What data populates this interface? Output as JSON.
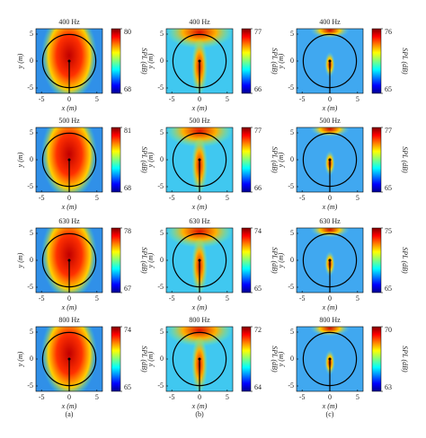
{
  "chart_data": [
    {
      "type": "heatmap",
      "title": "400 Hz",
      "xlabel": "x (m)",
      "ylabel": "y (m)",
      "xlim": [
        -6,
        6
      ],
      "ylim": [
        -6,
        6
      ],
      "xticks": [
        -5,
        0,
        5
      ],
      "yticks": [
        -5,
        0,
        5
      ],
      "colorbar": {
        "label": "SPL (dB)",
        "lim": [
          68,
          80
        ],
        "ticks": [
          68,
          80
        ]
      }
    },
    {
      "type": "heatmap",
      "title": "400 Hz",
      "xlabel": "x (m)",
      "ylabel": "y (m)",
      "xlim": [
        -6,
        6
      ],
      "ylim": [
        -6,
        6
      ],
      "xticks": [
        -5,
        0,
        5
      ],
      "yticks": [
        -5,
        0,
        5
      ],
      "colorbar": {
        "label": "SPL (dB)",
        "lim": [
          66,
          77
        ],
        "ticks": [
          66,
          77
        ]
      }
    },
    {
      "type": "heatmap",
      "title": "400 Hz",
      "xlabel": "x (m)",
      "ylabel": "y (m)",
      "xlim": [
        -6,
        6
      ],
      "ylim": [
        -6,
        6
      ],
      "xticks": [
        -5,
        0,
        5
      ],
      "yticks": [
        -5,
        0,
        5
      ],
      "colorbar": {
        "label": "SPL (dB)",
        "lim": [
          65,
          76
        ],
        "ticks": [
          65,
          76
        ]
      }
    },
    {
      "type": "heatmap",
      "title": "500 Hz",
      "xlabel": "x (m)",
      "ylabel": "y (m)",
      "xlim": [
        -6,
        6
      ],
      "ylim": [
        -6,
        6
      ],
      "xticks": [
        -5,
        0,
        5
      ],
      "yticks": [
        -5,
        0,
        5
      ],
      "colorbar": {
        "label": "SPL (dB)",
        "lim": [
          68,
          81
        ],
        "ticks": [
          68,
          81
        ]
      }
    },
    {
      "type": "heatmap",
      "title": "500 Hz",
      "xlabel": "x (m)",
      "ylabel": "y (m)",
      "xlim": [
        -6,
        6
      ],
      "ylim": [
        -6,
        6
      ],
      "xticks": [
        -5,
        0,
        5
      ],
      "yticks": [
        -5,
        0,
        5
      ],
      "colorbar": {
        "label": "SPL (dB)",
        "lim": [
          66,
          77
        ],
        "ticks": [
          66,
          77
        ]
      }
    },
    {
      "type": "heatmap",
      "title": "500 Hz",
      "xlabel": "x (m)",
      "ylabel": "y (m)",
      "xlim": [
        -6,
        6
      ],
      "ylim": [
        -6,
        6
      ],
      "xticks": [
        -5,
        0,
        5
      ],
      "yticks": [
        -5,
        0,
        5
      ],
      "colorbar": {
        "label": "SPL (dB)",
        "lim": [
          65,
          77
        ],
        "ticks": [
          65,
          77
        ]
      }
    },
    {
      "type": "heatmap",
      "title": "630 Hz",
      "xlabel": "x (m)",
      "ylabel": "y (m)",
      "xlim": [
        -6,
        6
      ],
      "ylim": [
        -6,
        6
      ],
      "xticks": [
        -5,
        0,
        5
      ],
      "yticks": [
        -5,
        0,
        5
      ],
      "colorbar": {
        "label": "SPL (dB)",
        "lim": [
          67,
          78
        ],
        "ticks": [
          67,
          78
        ]
      }
    },
    {
      "type": "heatmap",
      "title": "630 Hz",
      "xlabel": "x (m)",
      "ylabel": "y (m)",
      "xlim": [
        -6,
        6
      ],
      "ylim": [
        -6,
        6
      ],
      "xticks": [
        -5,
        0,
        5
      ],
      "yticks": [
        -5,
        0,
        5
      ],
      "colorbar": {
        "label": "SPL (dB)",
        "lim": [
          65,
          74
        ],
        "ticks": [
          65,
          74
        ]
      }
    },
    {
      "type": "heatmap",
      "title": "630 Hz",
      "xlabel": "x (m)",
      "ylabel": "y (m)",
      "xlim": [
        -6,
        6
      ],
      "ylim": [
        -6,
        6
      ],
      "xticks": [
        -5,
        0,
        5
      ],
      "yticks": [
        -5,
        0,
        5
      ],
      "colorbar": {
        "label": "SPL (dB)",
        "lim": [
          65,
          75
        ],
        "ticks": [
          65,
          75
        ]
      }
    },
    {
      "type": "heatmap",
      "title": "800 Hz",
      "xlabel": "x (m)",
      "ylabel": "y (m)",
      "xlim": [
        -6,
        6
      ],
      "ylim": [
        -6,
        6
      ],
      "xticks": [
        -5,
        0,
        5
      ],
      "yticks": [
        -5,
        0,
        5
      ],
      "colorbar": {
        "label": "SPL (dB)",
        "lim": [
          65,
          74
        ],
        "ticks": [
          65,
          74
        ]
      }
    },
    {
      "type": "heatmap",
      "title": "800 Hz",
      "xlabel": "x (m)",
      "ylabel": "y (m)",
      "xlim": [
        -6,
        6
      ],
      "ylim": [
        -6,
        6
      ],
      "xticks": [
        -5,
        0,
        5
      ],
      "yticks": [
        -5,
        0,
        5
      ],
      "colorbar": {
        "label": "SPL (dB)",
        "lim": [
          64,
          72
        ],
        "ticks": [
          64,
          72
        ]
      }
    },
    {
      "type": "heatmap",
      "title": "800 Hz",
      "xlabel": "x (m)",
      "ylabel": "y (m)",
      "xlim": [
        -6,
        6
      ],
      "ylim": [
        -6,
        6
      ],
      "xticks": [
        -5,
        0,
        5
      ],
      "yticks": [
        -5,
        0,
        5
      ],
      "colorbar": {
        "label": "SPL (dB)",
        "lim": [
          63,
          70
        ],
        "ticks": [
          63,
          70
        ]
      }
    }
  ],
  "panel_labels": [
    "(a)",
    "(b)",
    "(c)"
  ]
}
